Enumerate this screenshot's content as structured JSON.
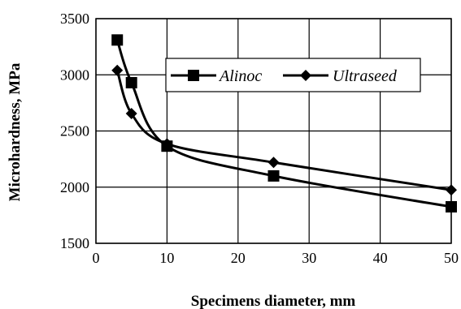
{
  "chart_data": {
    "type": "line",
    "xlabel": "Specimens diameter, mm",
    "ylabel": "Microhardness, MPa",
    "xlim": [
      0,
      50
    ],
    "ylim": [
      1500,
      3500
    ],
    "x_ticks": [
      "0",
      "10",
      "20",
      "30",
      "40",
      "50"
    ],
    "y_ticks": [
      "1500",
      "2000",
      "2500",
      "3000",
      "3500"
    ],
    "x_tick_values": [
      0,
      10,
      20,
      30,
      40,
      50
    ],
    "y_tick_values": [
      1500,
      2000,
      2500,
      3000,
      3500
    ],
    "grid": true,
    "legend_position": "top-right",
    "series": [
      {
        "name": "Alinoc",
        "marker": "square",
        "color": "#000000",
        "x": [
          3,
          5,
          10,
          25,
          50
        ],
        "y": [
          3310,
          2930,
          2365,
          2100,
          1825
        ]
      },
      {
        "name": "Ultraseed",
        "marker": "diamond",
        "color": "#000000",
        "x": [
          3,
          5,
          10,
          25,
          50
        ],
        "y": [
          3040,
          2655,
          2385,
          2220,
          1975
        ]
      }
    ]
  }
}
